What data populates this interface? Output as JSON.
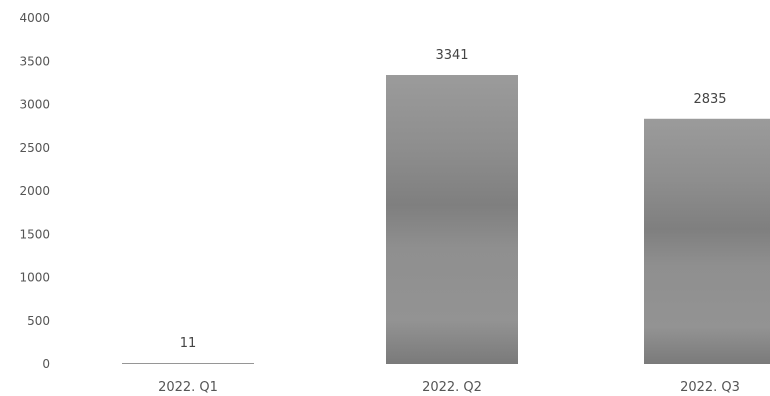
{
  "chart_data": {
    "type": "bar",
    "categories": [
      "2022. Q1",
      "2022. Q2",
      "2022. Q3"
    ],
    "values": [
      11,
      3341,
      2835
    ],
    "data_labels": [
      "11",
      "3341",
      "2835"
    ],
    "yticks": [
      "0",
      "500",
      "1000",
      "1500",
      "2000",
      "2500",
      "3000",
      "3500",
      "4000"
    ],
    "ylim": [
      0,
      4000
    ],
    "title": "",
    "xlabel": "",
    "ylabel": "",
    "grid": false,
    "legend": false,
    "bar_color": "#8a8a8a"
  }
}
